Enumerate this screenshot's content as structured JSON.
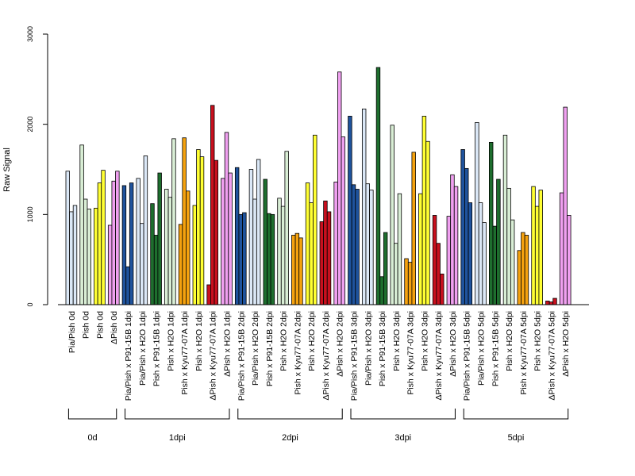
{
  "chart_data": {
    "type": "bar",
    "ylabel": "Raw Signal",
    "ylim": [
      0,
      3000
    ],
    "yticks": [
      0,
      1000,
      2000,
      3000
    ],
    "colors": {
      "lightblue": "#dbe8f7",
      "darkblue": "#1f539d",
      "lightgreen": "#d9eed5",
      "darkgreen": "#1e6e2e",
      "orange": "#f5a20f",
      "yellow": "#ffff33",
      "red": "#c8101e",
      "pink": "#f0a0f0"
    },
    "categories": [
      {
        "label": "Pia/Pish 0d",
        "color": "lightblue",
        "values": [
          1480,
          1030,
          1100
        ]
      },
      {
        "label": "Pish 0d",
        "color": "lightgreen",
        "values": [
          1770,
          1170,
          1060
        ]
      },
      {
        "label": "Pish 0d",
        "color": "yellow",
        "values": [
          1070,
          1350,
          1490
        ]
      },
      {
        "label": "ΔPish 0d",
        "color": "pink",
        "values": [
          880,
          1370,
          1480
        ]
      },
      {
        "label": "Pia/Pish x P91-15B 1dpi",
        "color": "darkblue",
        "values": [
          1320,
          420,
          1350
        ]
      },
      {
        "label": "Pia/Pish x H2O 1dpi",
        "color": "lightblue",
        "values": [
          1400,
          900,
          1650
        ]
      },
      {
        "label": "Pish x P91-15B 1dpi",
        "color": "darkgreen",
        "values": [
          1120,
          770,
          1460
        ]
      },
      {
        "label": "Pish x H2O 1dpi",
        "color": "lightgreen",
        "values": [
          1280,
          1190,
          1840
        ]
      },
      {
        "label": "Pish x Kyu77-07A 1dpi",
        "color": "orange",
        "values": [
          890,
          1850,
          1260
        ]
      },
      {
        "label": "Pish x H2O 1dpi",
        "color": "yellow",
        "values": [
          1100,
          1720,
          1640
        ]
      },
      {
        "label": "ΔPish x Kyu77-07A 1dpi",
        "color": "red",
        "values": [
          220,
          2210,
          1600
        ]
      },
      {
        "label": "ΔPish x H2O 1dpi",
        "color": "pink",
        "values": [
          1400,
          1910,
          1460
        ]
      },
      {
        "label": "Pia/Pish x P91-15B 2dpi",
        "color": "darkblue",
        "values": [
          1520,
          1000,
          1020
        ]
      },
      {
        "label": "Pia/Pish x H2O 2dpi",
        "color": "lightblue",
        "values": [
          1500,
          1170,
          1610
        ]
      },
      {
        "label": "Pish x P91-15B 2dpi",
        "color": "darkgreen",
        "values": [
          1390,
          1010,
          1000
        ]
      },
      {
        "label": "Pish x H2O 2dpi",
        "color": "lightgreen",
        "values": [
          1180,
          1090,
          1700
        ]
      },
      {
        "label": "Pish x Kyu77-07A 2dpi",
        "color": "orange",
        "values": [
          770,
          790,
          740
        ]
      },
      {
        "label": "Pish x H2O 2dpi",
        "color": "yellow",
        "values": [
          1350,
          1130,
          1880
        ]
      },
      {
        "label": "ΔPish x Kyu77-07A 2dpi",
        "color": "red",
        "values": [
          920,
          1150,
          1030
        ]
      },
      {
        "label": "ΔPish x H2O 2dpi",
        "color": "pink",
        "values": [
          1360,
          2580,
          1860
        ]
      },
      {
        "label": "Pia/Pish x P91-15B 3dpi",
        "color": "darkblue",
        "values": [
          2090,
          1330,
          1280
        ]
      },
      {
        "label": "Pia/Pish x H2O 3dpi",
        "color": "lightblue",
        "values": [
          2170,
          1340,
          1270
        ]
      },
      {
        "label": "Pish x P91-15B 3dpi",
        "color": "darkgreen",
        "values": [
          2630,
          310,
          800
        ]
      },
      {
        "label": "Pish x H2O 3dpi",
        "color": "lightgreen",
        "values": [
          1990,
          680,
          1230
        ]
      },
      {
        "label": "Pish x Kyu77-07A 3dpi",
        "color": "orange",
        "values": [
          510,
          470,
          1690
        ]
      },
      {
        "label": "Pish x H2O 3dpi",
        "color": "yellow",
        "values": [
          1230,
          2090,
          1810
        ]
      },
      {
        "label": "ΔPish x Kyu77-07A 3dpi",
        "color": "red",
        "values": [
          990,
          680,
          340
        ]
      },
      {
        "label": "ΔPish x H2O 3dpi",
        "color": "pink",
        "values": [
          980,
          1440,
          1310
        ]
      },
      {
        "label": "Pia/Pish x P91-15B 5dpi",
        "color": "darkblue",
        "values": [
          1720,
          1510,
          1130
        ]
      },
      {
        "label": "Pia/Pish x H2O 5dpi",
        "color": "lightblue",
        "values": [
          2020,
          1130,
          910
        ]
      },
      {
        "label": "Pish x P91-15B 5dpi",
        "color": "darkgreen",
        "values": [
          1800,
          870,
          1390
        ]
      },
      {
        "label": "Pish x H2O 5dpi",
        "color": "lightgreen",
        "values": [
          1880,
          1290,
          940
        ]
      },
      {
        "label": "Pish x Kyu77-07A 5dpi",
        "color": "orange",
        "values": [
          600,
          800,
          770
        ]
      },
      {
        "label": "Pish x H2O 5dpi",
        "color": "yellow",
        "values": [
          1310,
          1090,
          1270
        ]
      },
      {
        "label": "ΔPish x Kyu77-07A 5dpi",
        "color": "red",
        "values": [
          40,
          30,
          70
        ]
      },
      {
        "label": "ΔPish x H2O 5dpi",
        "color": "pink",
        "values": [
          1240,
          2190,
          990
        ]
      }
    ],
    "groups": [
      {
        "label": "0d",
        "first": 0,
        "last": 3
      },
      {
        "label": "1dpi",
        "first": 4,
        "last": 11
      },
      {
        "label": "2dpi",
        "first": 12,
        "last": 19
      },
      {
        "label": "3dpi",
        "first": 20,
        "last": 27
      },
      {
        "label": "5dpi",
        "first": 28,
        "last": 35
      }
    ]
  }
}
